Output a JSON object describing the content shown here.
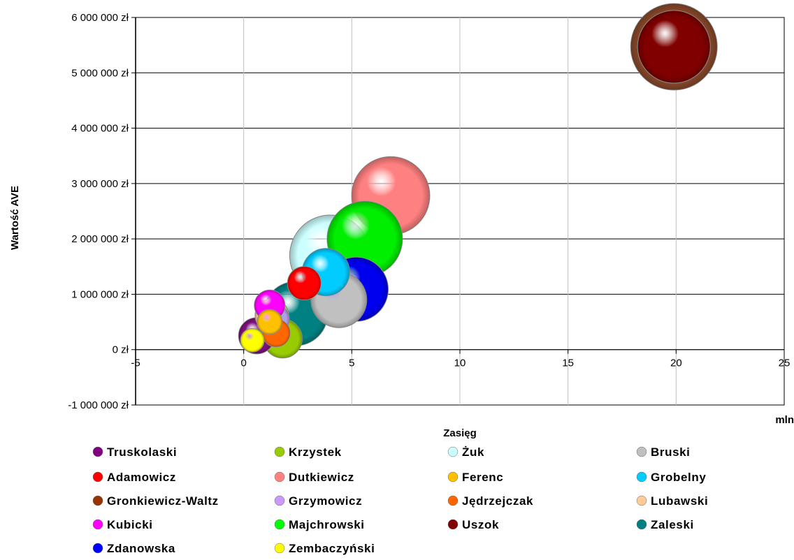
{
  "chart_data": {
    "type": "bubble",
    "xlabel": "Zasięg",
    "x_unit": "mln",
    "ylabel": "Wartość AVE",
    "xlim": [
      -5,
      25
    ],
    "ylim": [
      -1000000,
      6000000
    ],
    "x_ticks": [
      "-5",
      "0",
      "5",
      "10",
      "15",
      "20",
      "25"
    ],
    "y_ticks": [
      "-1 000 000 zł",
      "0 zł",
      "1 000 000 zł",
      "2 000 000 zł",
      "3 000 000 zł",
      "4 000 000 zł",
      "5 000 000 zł",
      "6 000 000 zł"
    ],
    "grid": true,
    "legend_position": "bottom",
    "series": [
      {
        "name": "Truskolaski",
        "color": "#7b0f7b",
        "x": 0.6,
        "y": 250000,
        "size": 26
      },
      {
        "name": "Krzystek",
        "color": "#99cc00",
        "x": 1.8,
        "y": 200000,
        "size": 28
      },
      {
        "name": "Żuk",
        "color": "#ccffff",
        "x": 4.0,
        "y": 1700000,
        "size": 58
      },
      {
        "name": "Bruski",
        "color": "#c0c0c0",
        "x": 4.4,
        "y": 900000,
        "size": 40
      },
      {
        "name": "Adamowicz",
        "color": "#ff0000",
        "x": 2.8,
        "y": 1200000,
        "size": 24
      },
      {
        "name": "Dutkiewicz",
        "color": "#ff8080",
        "x": 6.8,
        "y": 2780000,
        "size": 56
      },
      {
        "name": "Ferenc",
        "color": "#ffc000",
        "x": 1.2,
        "y": 500000,
        "size": 18
      },
      {
        "name": "Grobelny",
        "color": "#00ccff",
        "x": 3.8,
        "y": 1400000,
        "size": 34
      },
      {
        "name": "Gronkiewicz-Waltz",
        "color": "#8b4a2b",
        "x": 19.9,
        "y": 5470000,
        "size": 62
      },
      {
        "name": "Grzymowicz",
        "color": "#b0a0e8",
        "x": 1.4,
        "y": 550000,
        "size": 22
      },
      {
        "name": "Jędrzejczak",
        "color": "#ff6600",
        "x": 1.5,
        "y": 300000,
        "size": 20
      },
      {
        "name": "Lubawski",
        "color": "#ffcc99",
        "x": 1.3,
        "y": 620000,
        "size": 24
      },
      {
        "name": "Kubicki",
        "color": "#ff00ff",
        "x": 1.2,
        "y": 800000,
        "size": 22
      },
      {
        "name": "Majchrowski",
        "color": "#00ee00",
        "x": 5.6,
        "y": 2000000,
        "size": 54
      },
      {
        "name": "Uszok",
        "color": "#800000",
        "x": 19.9,
        "y": 5470000,
        "size": 52
      },
      {
        "name": "Zaleski",
        "color": "#008080",
        "x": 2.4,
        "y": 650000,
        "size": 46
      },
      {
        "name": "Zdanowska",
        "color": "#0000ee",
        "x": 5.2,
        "y": 1090000,
        "size": 46
      },
      {
        "name": "Zembaczyński",
        "color": "#ffff00",
        "x": 0.4,
        "y": 170000,
        "size": 17
      }
    ],
    "legend": [
      [
        "Truskolaski",
        "#800080"
      ],
      [
        "Krzystek",
        "#99cc00"
      ],
      [
        "Żuk",
        "#ccffff"
      ],
      [
        "Bruski",
        "#c0c0c0"
      ],
      [
        "Adamowicz",
        "#ff0000"
      ],
      [
        "Dutkiewicz",
        "#ff8080"
      ],
      [
        "Ferenc",
        "#ffc000"
      ],
      [
        "Grobelny",
        "#00ccff"
      ],
      [
        "Gronkiewicz-Waltz",
        "#993300"
      ],
      [
        "Grzymowicz",
        "#cc99ff"
      ],
      [
        "Jędrzejczak",
        "#ff6600"
      ],
      [
        "Lubawski",
        "#ffcc99"
      ],
      [
        "Kubicki",
        "#ff00ff"
      ],
      [
        "Majchrowski",
        "#00ff00"
      ],
      [
        "Uszok",
        "#800000"
      ],
      [
        "Zaleski",
        "#008080"
      ],
      [
        "Zdanowska",
        "#0000ff"
      ],
      [
        "Zembaczyński",
        "#ffff00"
      ]
    ]
  }
}
